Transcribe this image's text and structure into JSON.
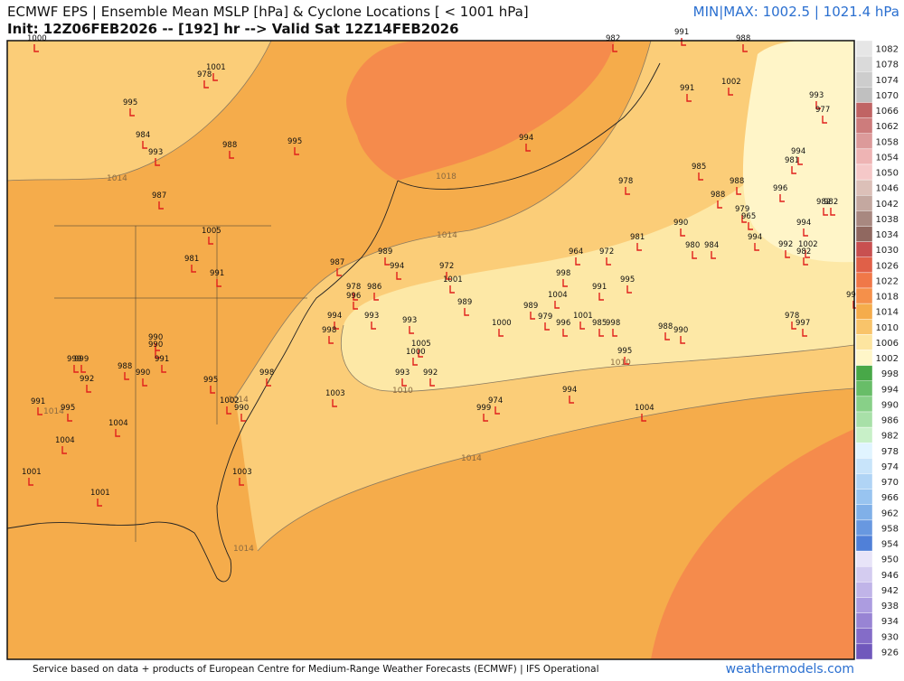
{
  "header": {
    "title": "ECMWF EPS | Ensemble Mean MSLP [hPa] & Cyclone Locations [ < 1001 hPa]",
    "init": "Init: 12Z06FEB2026 -- [192] hr --> Valid Sat 12Z14FEB2026",
    "minmax": "MIN|MAX: 1002.5 | 1021.4 hPa"
  },
  "map": {
    "cyclones": [
      1000,
      1001,
      978,
      995,
      984,
      993,
      988,
      995,
      987,
      1005,
      981,
      991,
      987,
      989,
      994,
      978,
      996,
      986,
      972,
      1001,
      989,
      994,
      998,
      993,
      993,
      1005,
      1000,
      993,
      992,
      990,
      990,
      991,
      999,
      999,
      992,
      988,
      990,
      995,
      998,
      1002,
      990,
      1003,
      991,
      995,
      1004,
      1004,
      1001,
      1001,
      1003,
      999,
      974,
      994,
      1004,
      982,
      991,
      988,
      991,
      1002,
      993,
      977,
      994,
      985,
      978,
      988,
      988,
      996,
      981,
      994,
      979,
      965,
      982,
      982,
      994,
      990,
      981,
      980,
      984,
      994,
      992,
      1002,
      982,
      964,
      972,
      998,
      1004,
      991,
      995,
      989,
      979,
      996,
      1001,
      985,
      998,
      1000,
      988,
      990,
      995,
      978,
      997,
      997
    ],
    "contour_labels": [
      1014,
      1018,
      1014,
      1014,
      1014,
      1010,
      1010,
      1014,
      1014
    ]
  },
  "colorbar": {
    "levels": [
      1082,
      1078,
      1074,
      1070,
      1066,
      1062,
      1058,
      1054,
      1050,
      1046,
      1042,
      1038,
      1034,
      1030,
      1026,
      1022,
      1018,
      1014,
      1010,
      1006,
      1002,
      998,
      994,
      990,
      986,
      982,
      978,
      974,
      970,
      966,
      962,
      958,
      954,
      950,
      946,
      942,
      938,
      934,
      930,
      926
    ],
    "colors": [
      "#e6e6e6",
      "#dadada",
      "#cdcdcd",
      "#c0c0c0",
      "#c06464",
      "#cd7c7c",
      "#dc9a9a",
      "#eeb4b4",
      "#f5c8c8",
      "#dcc0b8",
      "#c4a8a0",
      "#a88880",
      "#906860",
      "#c85050",
      "#e06048",
      "#f07848",
      "#f5904a",
      "#f5ac4b",
      "#f9c46a",
      "#fde5a0",
      "#fff6c8",
      "#48a848",
      "#68bd68",
      "#88d088",
      "#a8e0a8",
      "#c8f0c8",
      "#e0f4ff",
      "#c8e4fa",
      "#b0d4f5",
      "#98c4f0",
      "#80b0e8",
      "#6898e0",
      "#5080d8",
      "#e8e4f8",
      "#d4ccf0",
      "#c0b4e8",
      "#ac9ce0",
      "#9884d4",
      "#846cc8",
      "#7058bc"
    ]
  },
  "footer": {
    "credit": "Service based on data + products of European Centre for Medium-Range Weather Forecasts (ECMWF) | IFS Operational",
    "site": "weathermodels.com"
  }
}
